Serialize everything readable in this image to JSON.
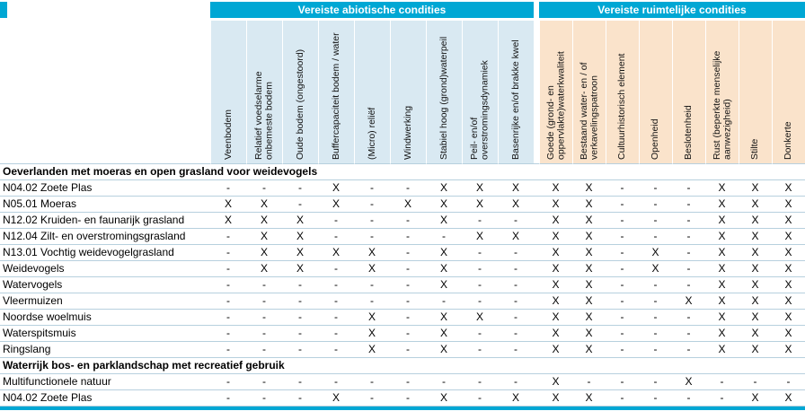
{
  "table": {
    "group_headers": [
      {
        "label": "Vereiste abiotische condities"
      },
      {
        "label": "Vereiste ruimtelijke condities"
      }
    ],
    "columns": [
      {
        "label": "Veenbodem",
        "group": "abiotisch"
      },
      {
        "label": "Relatief voedselarme onbemeste bodem",
        "group": "abiotisch"
      },
      {
        "label": "Oude bodem (ongestoord)",
        "group": "abiotisch"
      },
      {
        "label": "Buffercapaciteit bodem / water",
        "group": "abiotisch"
      },
      {
        "label": "(Micro) reliëf",
        "group": "abiotisch"
      },
      {
        "label": "Windwerking",
        "group": "abiotisch"
      },
      {
        "label": "Stabiel hoog (grond)waterpeil",
        "group": "abiotisch"
      },
      {
        "label": "Peil- en/of overstromingsdynamiek",
        "group": "abiotisch"
      },
      {
        "label": "Basenrijke en/of brakke kwel",
        "group": "abiotisch"
      },
      {
        "label": "Goede (grond- en oppervlakte)waterkwaliteit",
        "group": "ruimtelijk"
      },
      {
        "label": "Bestaand water- en / of verkavelingspatroon",
        "group": "ruimtelijk"
      },
      {
        "label": "Cultuurhistorisch element",
        "group": "ruimtelijk"
      },
      {
        "label": "Openheid",
        "group": "ruimtelijk"
      },
      {
        "label": "Beslotenheid",
        "group": "ruimtelijk"
      },
      {
        "label": "Rust (beperkte menselijke aanwezigheid)",
        "group": "ruimtelijk"
      },
      {
        "label": "Stilte",
        "group": "ruimtelijk"
      },
      {
        "label": "Donkerte",
        "group": "ruimtelijk"
      }
    ],
    "sections": [
      {
        "title": "Oeverlanden met moeras en open grasland voor weidevogels",
        "rows": [
          {
            "label": "N04.02 Zoete Plas",
            "values": [
              "-",
              "-",
              "-",
              "X",
              "-",
              "-",
              "X",
              "X",
              "X",
              "X",
              "X",
              "-",
              "-",
              "-",
              "X",
              "X",
              "X"
            ]
          },
          {
            "label": "N05.01 Moeras",
            "values": [
              "X",
              "X",
              "-",
              "X",
              "-",
              "X",
              "X",
              "X",
              "X",
              "X",
              "X",
              "-",
              "-",
              "-",
              "X",
              "X",
              "X"
            ]
          },
          {
            "label": "N12.02 Kruiden- en faunarijk grasland",
            "values": [
              "X",
              "X",
              "X",
              "-",
              "-",
              "-",
              "X",
              "-",
              "-",
              "X",
              "X",
              "-",
              "-",
              "-",
              "X",
              "X",
              "X"
            ]
          },
          {
            "label": "N12.04 Zilt- en overstromingsgrasland",
            "values": [
              "-",
              "X",
              "X",
              "-",
              "-",
              "-",
              "-",
              "X",
              "X",
              "X",
              "X",
              "-",
              "-",
              "-",
              "X",
              "X",
              "X"
            ]
          },
          {
            "label": "N13.01 Vochtig weidevogelgrasland",
            "values": [
              "-",
              "X",
              "X",
              "X",
              "X",
              "-",
              "X",
              "-",
              "-",
              "X",
              "X",
              "-",
              "X",
              "-",
              "X",
              "X",
              "X"
            ]
          },
          {
            "label": "Weidevogels",
            "values": [
              "-",
              "X",
              "X",
              "-",
              "X",
              "-",
              "X",
              "-",
              "-",
              "X",
              "X",
              "-",
              "X",
              "-",
              "X",
              "X",
              "X"
            ]
          },
          {
            "label": "Watervogels",
            "values": [
              "-",
              "-",
              "-",
              "-",
              "-",
              "-",
              "X",
              "-",
              "-",
              "X",
              "X",
              "-",
              "-",
              "-",
              "X",
              "X",
              "X"
            ]
          },
          {
            "label": "Vleermuizen",
            "values": [
              "-",
              "-",
              "-",
              "-",
              "-",
              "-",
              "-",
              "-",
              "-",
              "X",
              "X",
              "-",
              "-",
              "X",
              "X",
              "X",
              "X"
            ]
          },
          {
            "label": "Noordse woelmuis",
            "values": [
              "-",
              "-",
              "-",
              "-",
              "X",
              "-",
              "X",
              "X",
              "-",
              "X",
              "X",
              "-",
              "-",
              "-",
              "X",
              "X",
              "X"
            ]
          },
          {
            "label": "Waterspitsmuis",
            "values": [
              "-",
              "-",
              "-",
              "-",
              "X",
              "-",
              "X",
              "-",
              "-",
              "X",
              "X",
              "-",
              "-",
              "-",
              "X",
              "X",
              "X"
            ]
          },
          {
            "label": "Ringslang",
            "values": [
              "-",
              "-",
              "-",
              "-",
              "X",
              "-",
              "X",
              "-",
              "-",
              "X",
              "X",
              "-",
              "-",
              "-",
              "X",
              "X",
              "X"
            ]
          }
        ]
      },
      {
        "title": "Waterrijk bos- en parklandschap met recreatief gebruik",
        "rows": [
          {
            "label": "Multifunctionele natuur",
            "values": [
              "-",
              "-",
              "-",
              "-",
              "-",
              "-",
              "-",
              "-",
              "-",
              "X",
              "-",
              "-",
              "-",
              "X",
              "-",
              "-",
              "-"
            ]
          },
          {
            "label": "N04.02 Zoete Plas",
            "values": [
              "-",
              "-",
              "-",
              "X",
              "-",
              "-",
              "X",
              "-",
              "X",
              "X",
              "X",
              "-",
              "-",
              "-",
              "-",
              "X",
              "X"
            ]
          }
        ]
      }
    ],
    "legend": {
      "present": "X",
      "absent": "-"
    }
  },
  "colors": {
    "accent": "#00a7d4",
    "abiotic_header_bg": "#d9e9f2",
    "spatial_header_bg": "#fae3cb",
    "row_line": "#b7d0de"
  }
}
